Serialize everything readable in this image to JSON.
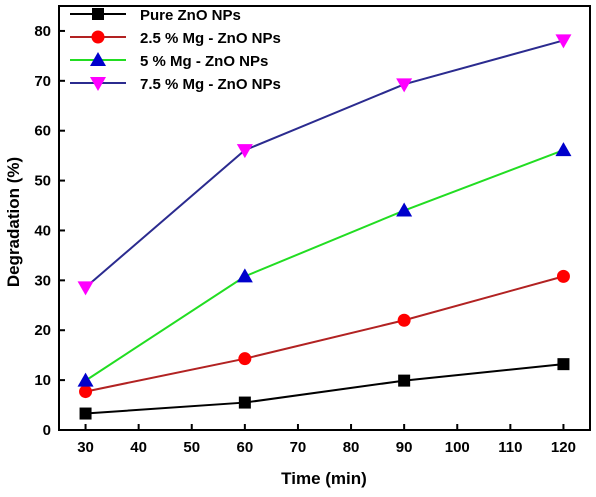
{
  "chart_data": {
    "type": "line",
    "xlabel": "Time (min)",
    "ylabel": "Degradation (%)",
    "xlim": [
      25,
      125
    ],
    "ylim": [
      0,
      85
    ],
    "x": [
      30,
      60,
      90,
      120
    ],
    "xticks": [
      30,
      40,
      50,
      60,
      70,
      80,
      90,
      100,
      110,
      120
    ],
    "yticks": [
      0,
      10,
      20,
      30,
      40,
      50,
      60,
      70,
      80
    ],
    "grid": false,
    "legend_position": "top-left",
    "series": [
      {
        "name": "Pure ZnO NPs",
        "values": [
          3.3,
          5.5,
          9.9,
          13.2
        ],
        "line_color": "#000000",
        "marker": "square",
        "marker_color": "#000000"
      },
      {
        "name": "2.5 % Mg - ZnO NPs",
        "values": [
          7.7,
          14.3,
          22.0,
          30.8
        ],
        "line_color": "#b22222",
        "marker": "circle",
        "marker_color": "#ff0000"
      },
      {
        "name": "5 % Mg - ZnO NPs",
        "values": [
          9.9,
          30.8,
          44.0,
          56.1
        ],
        "line_color": "#22dd22",
        "marker": "triangle-up",
        "marker_color": "#0000cc"
      },
      {
        "name": "7.5 % Mg - ZnO NPs",
        "values": [
          28.6,
          56.1,
          69.3,
          78.1
        ],
        "line_color": "#2b2b8f",
        "marker": "triangle-down",
        "marker_color": "#ff00ff"
      }
    ]
  }
}
